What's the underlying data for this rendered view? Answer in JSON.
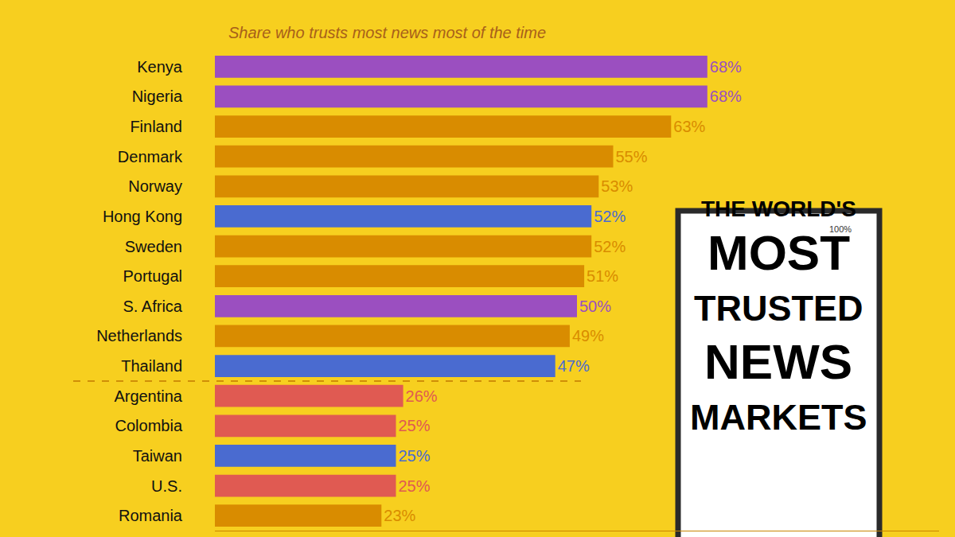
{
  "chart_data": {
    "type": "bar",
    "orientation": "horizontal",
    "title": "THE WORLD'S MOST TRUSTED NEWS MARKETS",
    "subtitle": "Share who trusts most news most of the time",
    "annotations": [
      "100%"
    ],
    "categories": [
      "Kenya",
      "Nigeria",
      "Finland",
      "Denmark",
      "Norway",
      "Hong Kong",
      "Sweden",
      "Portugal",
      "S. Africa",
      "Netherlands",
      "Thailand",
      "Argentina",
      "Colombia",
      "Taiwan",
      "U.S.",
      "Romania"
    ],
    "values": [
      68,
      68,
      63,
      55,
      53,
      52,
      52,
      51,
      50,
      49,
      47,
      26,
      25,
      25,
      25,
      23
    ],
    "value_labels": [
      "68%",
      "68%",
      "63%",
      "55%",
      "53%",
      "52%",
      "52%",
      "51%",
      "50%",
      "49%",
      "47%",
      "26%",
      "25%",
      "25%",
      "25%",
      "23%"
    ],
    "colors": [
      "#9b4fc0",
      "#9b4fc0",
      "#d98c00",
      "#d98c00",
      "#d98c00",
      "#4a6bd0",
      "#d98c00",
      "#d98c00",
      "#9b4fc0",
      "#d98c00",
      "#4a6bd0",
      "#e05a52",
      "#e05a52",
      "#4a6bd0",
      "#e05a52",
      "#d98c00"
    ],
    "xlim": [
      0,
      100
    ],
    "data_labels": true,
    "tick_labels": "y",
    "grid": false
  }
}
